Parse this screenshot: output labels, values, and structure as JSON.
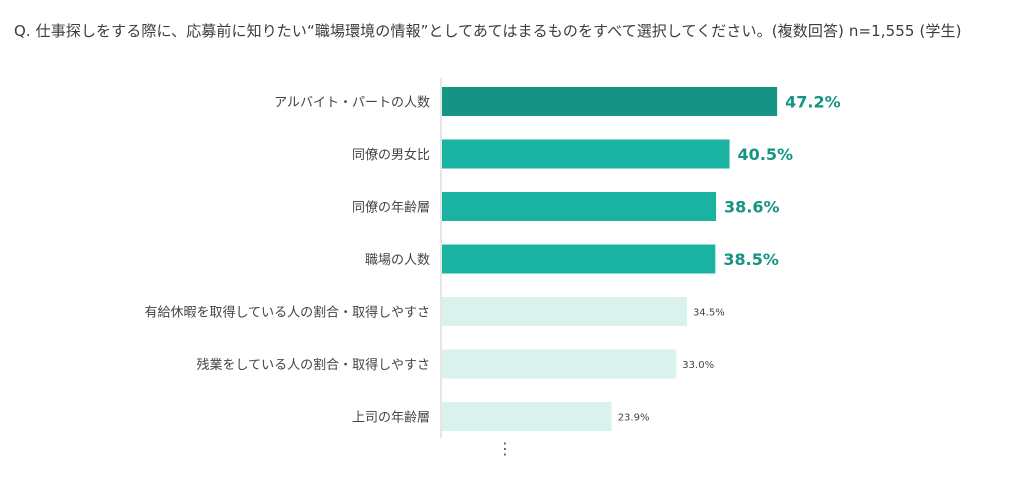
{
  "question": "Q. 仕事探しをする際に、応募前に知りたい“職場環境の情報”としてあてはまるものをすべて選択してください。(複数回答) n=1,555 (学生)",
  "more_indicator": "⋮",
  "colors": {
    "top": "#159383",
    "high": "#1ab3a1",
    "low": "#d9f2ee",
    "axis": "#cccccc",
    "highlight_text": "#159383"
  },
  "chart_data": {
    "type": "bar",
    "orientation": "horizontal",
    "title": "",
    "xlabel": "",
    "ylabel": "",
    "xlim": [
      0,
      50
    ],
    "grid": false,
    "categories": [
      "アルバイト・パートの人数",
      "同僚の男女比",
      "同僚の年齢層",
      "職場の人数",
      "有給休暇を取得している人の割合・取得しやすさ",
      "残業をしている人の割合・取得しやすさ",
      "上司の年齢層"
    ],
    "values": [
      47.2,
      40.5,
      38.6,
      38.5,
      34.5,
      33.0,
      23.9
    ],
    "value_labels": [
      "47.2%",
      "40.5%",
      "38.6%",
      "38.5%",
      "34.5%",
      "33.0%",
      "23.9%"
    ]
  }
}
